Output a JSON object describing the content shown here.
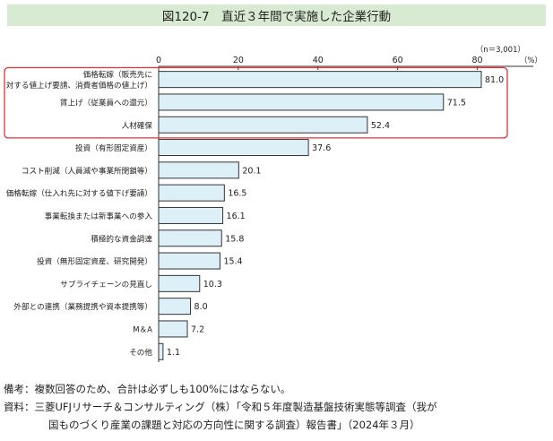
{
  "title": "図120-7　直近３年間で実施した企業行動",
  "chart_data": {
    "type": "bar",
    "orientation": "horizontal",
    "n_label": "（n＝3,001）",
    "unit_label": "（%）",
    "xlim": [
      0,
      90
    ],
    "ticks": [
      0,
      20,
      40,
      60,
      80
    ],
    "bar_color": "#ddf0f8",
    "bar_border": "#333333",
    "highlight_color": "#e0323a",
    "highlight_count": 3,
    "categories": [
      [
        "価格転嫁（販売先に",
        "対する値上げ要請、消費者価格の値上げ）"
      ],
      [
        "賃上げ（従業員への還元）"
      ],
      [
        "人材確保"
      ],
      [
        "投資（有形固定資産）"
      ],
      [
        "コスト削減（人員減や事業所閉鎖等）"
      ],
      [
        "価格転嫁（仕入れ先に対する値下げ要請）"
      ],
      [
        "事業転換または新事業への参入"
      ],
      [
        "積極的な資金調達"
      ],
      [
        "投資（無形固定資産、研究開発）"
      ],
      [
        "サプライチェーンの見直し"
      ],
      [
        "外部との連携（業務提携や資本提携等）"
      ],
      [
        "M＆A"
      ],
      [
        "その他"
      ]
    ],
    "values": [
      81.0,
      71.5,
      52.4,
      37.6,
      20.1,
      16.5,
      16.1,
      15.8,
      15.4,
      10.3,
      8.0,
      7.2,
      1.1
    ]
  },
  "notes": {
    "biko": "備考：複数回答のため、合計は必ずしも100%にはならない。",
    "source_1": "資料：三菱UFJリサーチ＆コンサルティング（株）「令和５年度製造基盤技術実態等調査（我が",
    "source_2": "国ものづくり産業の課題と対応の方向性に関する調査）報告書」（2024年３月）"
  }
}
